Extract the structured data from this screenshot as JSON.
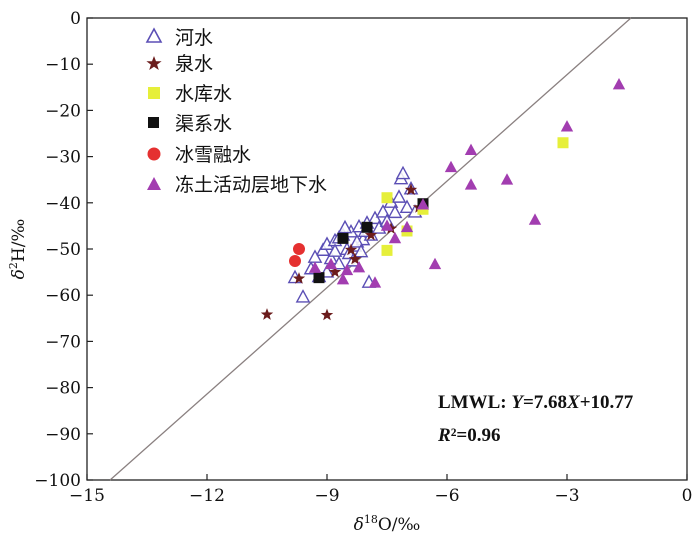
{
  "chart_data": {
    "type": "scatter",
    "xlabel_sym": "δ",
    "xlabel_sup": "18",
    "xlabel_rest": "O/‰",
    "ylabel_sym": "δ",
    "ylabel_sup": "2",
    "ylabel_rest": "H/‰",
    "xlim": [
      -15,
      0
    ],
    "ylim": [
      -100,
      0
    ],
    "x_ticks": [
      -15,
      -12,
      -9,
      -6,
      -3,
      0
    ],
    "x_tick_labels": [
      "−15",
      "−12",
      "−9",
      "−6",
      "−3",
      "0"
    ],
    "y_ticks": [
      0,
      -10,
      -20,
      -30,
      -40,
      -50,
      -60,
      -70,
      -80,
      -90,
      -100
    ],
    "y_tick_labels": [
      "0",
      "−10",
      "−20",
      "−30",
      "−40",
      "−50",
      "−60",
      "−70",
      "−80",
      "−90",
      "−100"
    ],
    "grid": false,
    "legend_position": "top-left",
    "lmwl": {
      "slope": 7.68,
      "intercept": 10.77,
      "label": "LMWL: Y=7.68X+10.77",
      "r2_label": "R²=0.96"
    },
    "series": [
      {
        "name": "河水",
        "marker": "triangle-open",
        "color": "#5b4fb5",
        "points": [
          [
            -9.8,
            -56.2
          ],
          [
            -9.6,
            -60.4
          ],
          [
            -9.4,
            -54.3
          ],
          [
            -9.2,
            -56.0
          ],
          [
            -9.1,
            -50.3
          ],
          [
            -9.0,
            -49.0
          ],
          [
            -8.9,
            -52.1
          ],
          [
            -8.8,
            -48.2
          ],
          [
            -8.7,
            -53.2
          ],
          [
            -8.6,
            -47.0
          ],
          [
            -8.5,
            -50.1
          ],
          [
            -8.4,
            -46.3
          ],
          [
            -8.3,
            -49.4
          ],
          [
            -8.2,
            -45.2
          ],
          [
            -8.1,
            -48.0
          ],
          [
            -8.0,
            -44.4
          ],
          [
            -7.9,
            -47.0
          ],
          [
            -7.8,
            -43.4
          ],
          [
            -7.7,
            -45.5
          ],
          [
            -7.6,
            -42.0
          ],
          [
            -7.5,
            -44.0
          ],
          [
            -7.4,
            -39.9
          ],
          [
            -7.3,
            -42.1
          ],
          [
            -7.2,
            -38.8
          ],
          [
            -7.15,
            -34.8
          ],
          [
            -7.1,
            -33.7
          ],
          [
            -7.0,
            -41.0
          ],
          [
            -6.9,
            -37.0
          ],
          [
            -6.8,
            -42.0
          ],
          [
            -8.7,
            -47.6
          ],
          [
            -8.55,
            -45.4
          ],
          [
            -8.45,
            -51.0
          ],
          [
            -8.35,
            -52.6
          ],
          [
            -8.25,
            -48.5
          ],
          [
            -8.15,
            -50.6
          ],
          [
            -8.05,
            -46.2
          ],
          [
            -7.95,
            -57.2
          ],
          [
            -9.3,
            -51.8
          ],
          [
            -9.0,
            -55.0
          ],
          [
            -8.8,
            -50.5
          ]
        ]
      },
      {
        "name": "泉水",
        "marker": "star",
        "color": "#6b1c1c",
        "points": [
          [
            -10.5,
            -64.2
          ],
          [
            -9.7,
            -56.4
          ],
          [
            -9.0,
            -64.3
          ],
          [
            -8.8,
            -55.0
          ],
          [
            -8.3,
            -52.2
          ],
          [
            -8.4,
            -50.2
          ],
          [
            -7.9,
            -47.0
          ],
          [
            -7.4,
            -45.6
          ],
          [
            -6.9,
            -37.2
          ],
          [
            -6.7,
            -41.0
          ]
        ]
      },
      {
        "name": "水库水",
        "marker": "square",
        "color": "#e6ef3a",
        "points": [
          [
            -7.5,
            -38.9
          ],
          [
            -7.5,
            -50.3
          ],
          [
            -7.0,
            -46.1
          ],
          [
            -6.6,
            -41.4
          ],
          [
            -3.1,
            -27.0
          ]
        ]
      },
      {
        "name": "渠系水",
        "marker": "square",
        "color": "#111111",
        "points": [
          [
            -9.2,
            -56.2
          ],
          [
            -8.6,
            -47.7
          ],
          [
            -8.0,
            -45.3
          ],
          [
            -6.6,
            -40.2
          ]
        ]
      },
      {
        "name": "冰雪融水",
        "marker": "circle",
        "color": "#e53030",
        "points": [
          [
            -9.7,
            -50.0
          ],
          [
            -9.8,
            -52.6
          ]
        ]
      },
      {
        "name": "冻土活动层地下水",
        "marker": "triangle-filled",
        "color": "#a23db0",
        "points": [
          [
            -9.3,
            -54.1
          ],
          [
            -8.9,
            -53.3
          ],
          [
            -8.6,
            -56.6
          ],
          [
            -8.5,
            -54.6
          ],
          [
            -8.2,
            -54.0
          ],
          [
            -7.8,
            -57.3
          ],
          [
            -7.5,
            -45.0
          ],
          [
            -7.3,
            -47.7
          ],
          [
            -7.0,
            -45.3
          ],
          [
            -6.6,
            -40.4
          ],
          [
            -6.3,
            -53.3
          ],
          [
            -5.9,
            -32.3
          ],
          [
            -5.4,
            -28.6
          ],
          [
            -5.4,
            -36.1
          ],
          [
            -4.5,
            -35.0
          ],
          [
            -3.8,
            -43.7
          ],
          [
            -3.0,
            -23.5
          ],
          [
            -1.7,
            -14.4
          ]
        ]
      }
    ]
  }
}
